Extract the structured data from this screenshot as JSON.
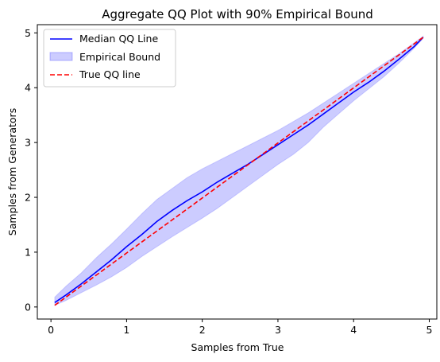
{
  "chart_data": {
    "type": "line",
    "title": "Aggregate QQ Plot with 90% Empirical Bound",
    "xlabel": "Samples from True",
    "ylabel": "Samples from Generators",
    "xlim": [
      -0.18,
      5.1
    ],
    "ylim": [
      -0.22,
      5.15
    ],
    "xticks": [
      0,
      1,
      2,
      3,
      4,
      5
    ],
    "yticks": [
      0,
      1,
      2,
      3,
      4,
      5
    ],
    "grid": false,
    "legend_position": "top-left",
    "series": [
      {
        "name": "Median QQ Line",
        "style": "solid",
        "color": "#0000ff",
        "x": [
          0.05,
          0.2,
          0.4,
          0.6,
          0.8,
          1.0,
          1.2,
          1.4,
          1.6,
          1.8,
          2.0,
          2.2,
          2.4,
          2.6,
          2.8,
          3.0,
          3.2,
          3.4,
          3.6,
          3.8,
          4.0,
          4.2,
          4.4,
          4.6,
          4.8,
          4.92
        ],
        "y": [
          0.08,
          0.22,
          0.42,
          0.64,
          0.86,
          1.1,
          1.32,
          1.56,
          1.76,
          1.94,
          2.1,
          2.28,
          2.44,
          2.6,
          2.78,
          2.96,
          3.14,
          3.32,
          3.52,
          3.72,
          3.92,
          4.1,
          4.3,
          4.52,
          4.75,
          4.92
        ]
      },
      {
        "name": "Empirical Bound",
        "style": "band",
        "color": "#0000ff",
        "opacity": 0.2,
        "x": [
          0.05,
          0.2,
          0.4,
          0.6,
          0.8,
          1.0,
          1.2,
          1.4,
          1.6,
          1.8,
          2.0,
          2.2,
          2.4,
          2.6,
          2.8,
          3.0,
          3.2,
          3.4,
          3.6,
          3.8,
          4.0,
          4.2,
          4.4,
          4.6,
          4.8,
          4.92
        ],
        "lower": [
          0.03,
          0.12,
          0.26,
          0.4,
          0.55,
          0.72,
          0.92,
          1.1,
          1.28,
          1.45,
          1.62,
          1.8,
          2.0,
          2.2,
          2.4,
          2.6,
          2.78,
          3.0,
          3.28,
          3.52,
          3.76,
          3.98,
          4.2,
          4.45,
          4.72,
          4.9
        ],
        "upper": [
          0.18,
          0.38,
          0.62,
          0.9,
          1.15,
          1.42,
          1.7,
          1.96,
          2.16,
          2.36,
          2.52,
          2.66,
          2.8,
          2.94,
          3.08,
          3.22,
          3.38,
          3.54,
          3.72,
          3.9,
          4.08,
          4.26,
          4.44,
          4.62,
          4.82,
          4.94
        ]
      },
      {
        "name": "True QQ line",
        "style": "dashed",
        "color": "#ff0000",
        "x": [
          0.05,
          4.92
        ],
        "y": [
          0.03,
          4.92
        ]
      }
    ]
  }
}
